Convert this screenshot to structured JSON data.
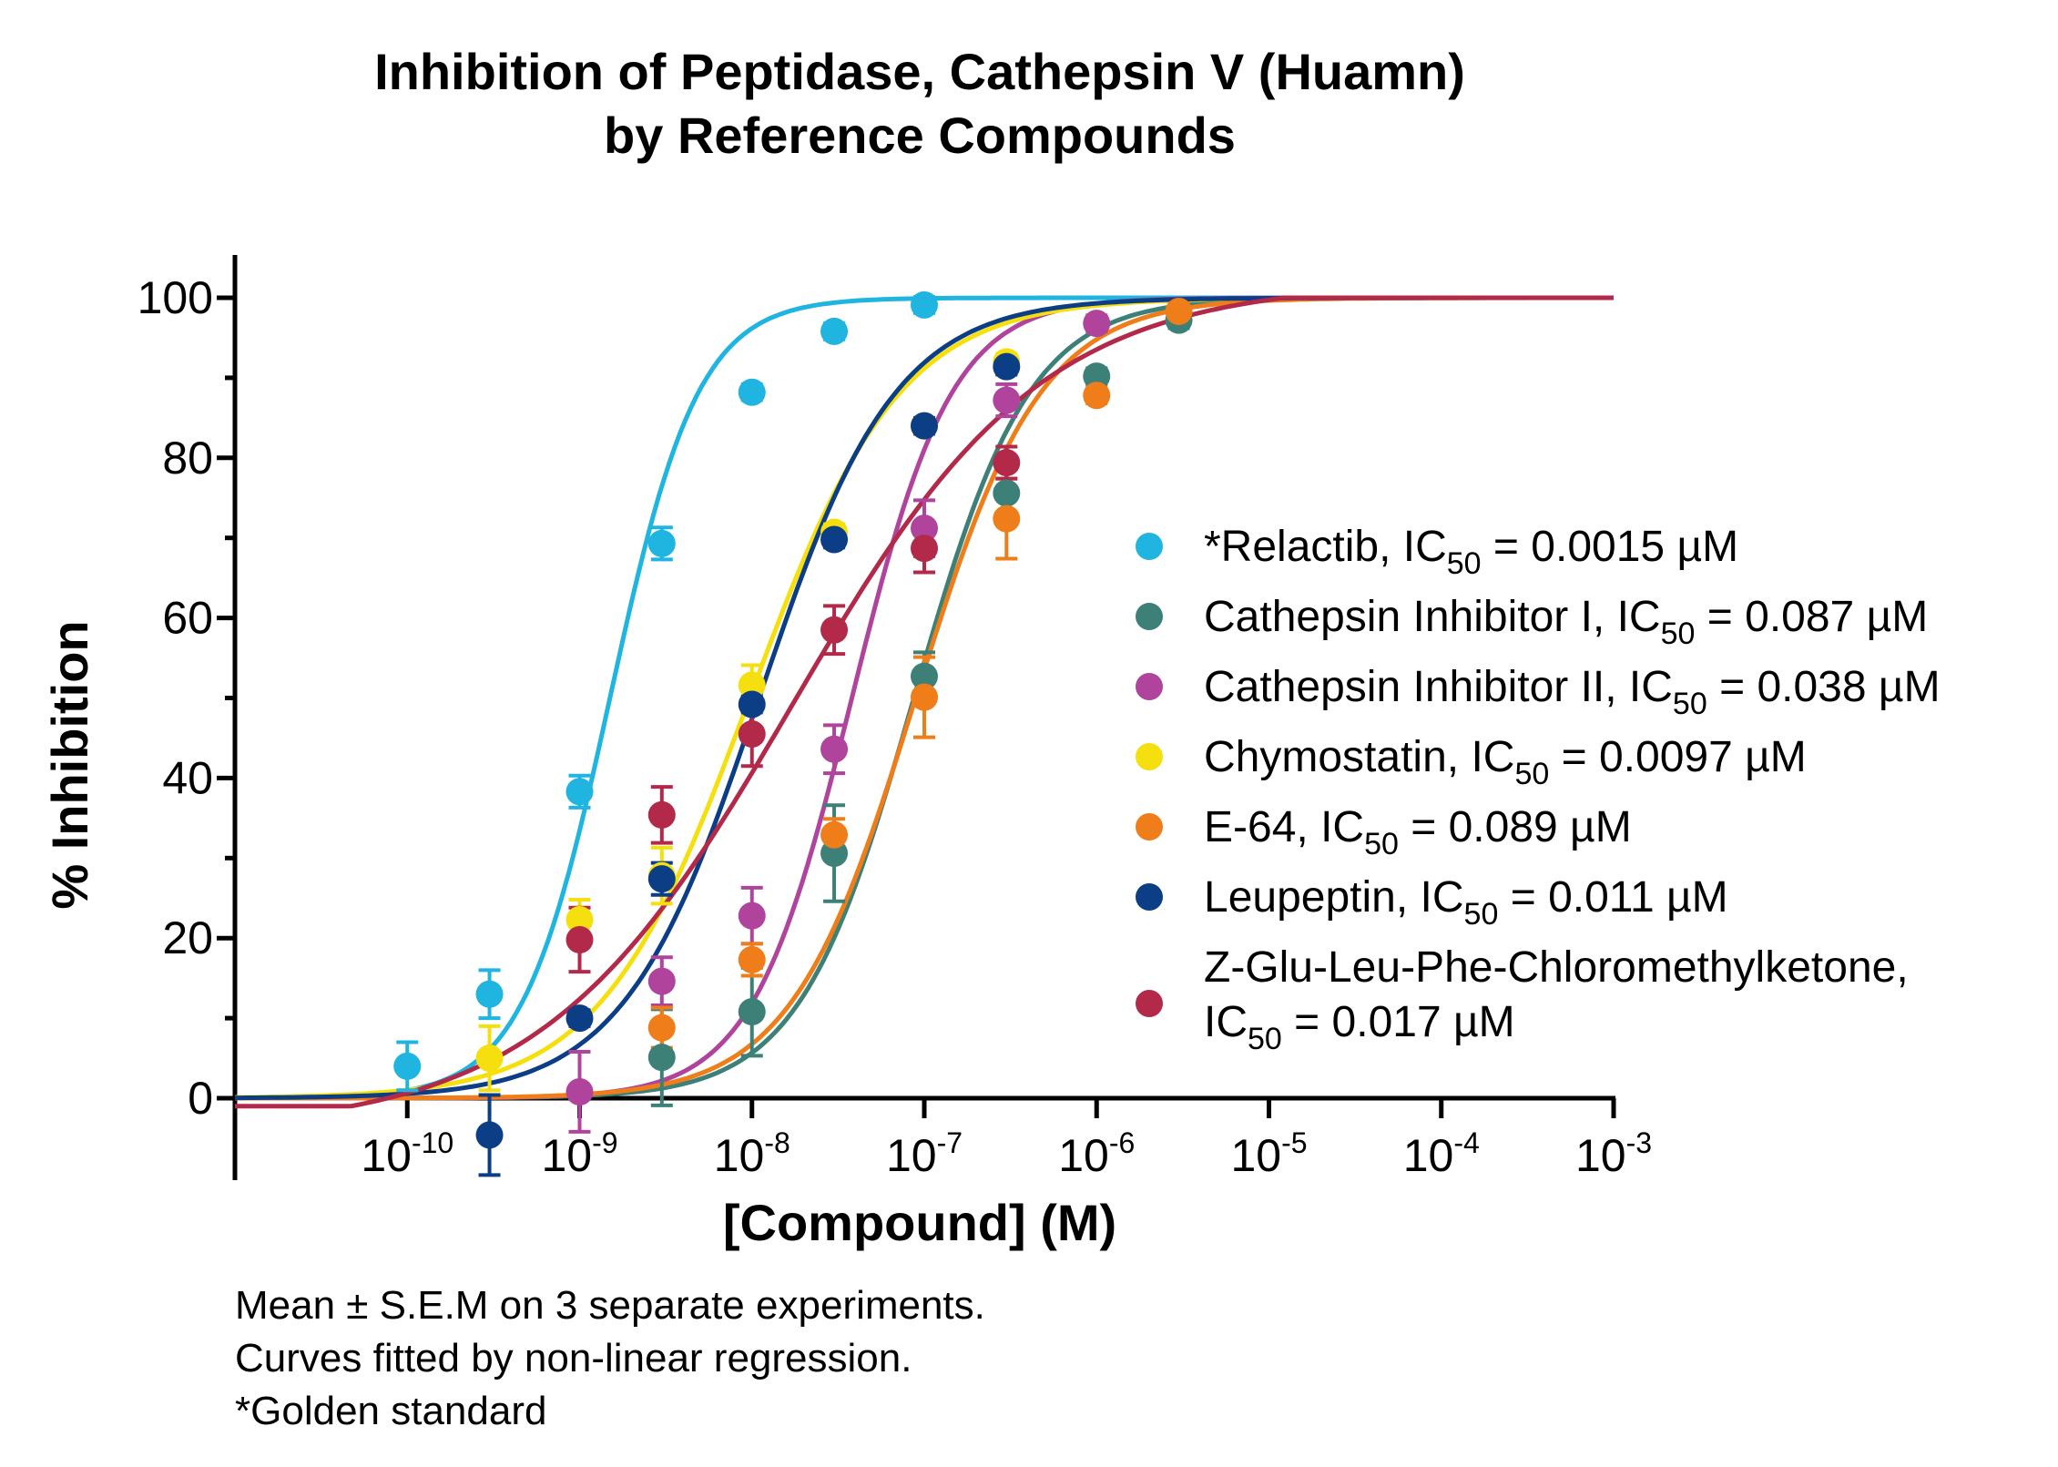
{
  "chart_data": {
    "type": "scatter",
    "title_lines": [
      "Inhibition of Peptidase, Cathepsin V (Huamn)",
      "by Reference Compounds"
    ],
    "xlabel": "[Compound] (M)",
    "ylabel": "% Inhibition",
    "x_scale": "log",
    "xlim": [
      1e-11,
      0.001
    ],
    "ylim": [
      -10,
      105
    ],
    "x_ticks": [
      {
        "base": "10",
        "exp": "-10"
      },
      {
        "base": "10",
        "exp": "-9"
      },
      {
        "base": "10",
        "exp": "-8"
      },
      {
        "base": "10",
        "exp": "-7"
      },
      {
        "base": "10",
        "exp": "-6"
      },
      {
        "base": "10",
        "exp": "-5"
      },
      {
        "base": "10",
        "exp": "-4"
      },
      {
        "base": "10",
        "exp": "-3"
      }
    ],
    "y_ticks": [
      "0",
      "20",
      "40",
      "60",
      "80",
      "100"
    ],
    "grid": false,
    "legend_position": "right",
    "series": [
      {
        "name_parts": [
          "*Relactib, IC",
          "50",
          " = 0.0015 µM"
        ],
        "color": "#1fb5e0",
        "ic50": 1.5e-09,
        "hill": 1.7,
        "bottom": 0,
        "top": 100,
        "x": [
          1e-10,
          3e-10,
          1e-09,
          3e-09,
          1e-08,
          3e-08,
          1e-07
        ],
        "y": [
          4,
          13,
          38.3,
          69.3,
          88.2,
          95.8,
          99.1
        ],
        "err": [
          3,
          3,
          2,
          2,
          1,
          1,
          1
        ]
      },
      {
        "name_parts": [
          "Cathepsin Inhibitor I, IC",
          "50",
          " = 0.087 µM"
        ],
        "color": "#3d8078",
        "ic50": 8.7e-08,
        "hill": 1.3,
        "bottom": 0,
        "top": 100,
        "x": [
          3e-09,
          1e-08,
          3e-08,
          1e-07,
          3e-07,
          1e-06,
          3e-06
        ],
        "y": [
          5.1,
          10.8,
          30.6,
          52.7,
          75.6,
          90.2,
          97.2
        ],
        "err": [
          6,
          5.5,
          6,
          3,
          3,
          1,
          1
        ]
      },
      {
        "name_parts": [
          "Cathepsin Inhibitor II, IC",
          "50",
          " = 0.038 µM"
        ],
        "color": "#b0449c",
        "ic50": 3.8e-08,
        "hill": 1.5,
        "bottom": 0,
        "top": 100,
        "x": [
          1e-09,
          3e-09,
          1e-08,
          3e-08,
          1e-07,
          3e-07,
          1e-06
        ],
        "y": [
          0.8,
          14.6,
          22.8,
          43.6,
          71.2,
          87.2,
          96.8
        ],
        "err": [
          5,
          3,
          3.5,
          3,
          3.5,
          2,
          1
        ]
      },
      {
        "name_parts": [
          "Chymostatin, IC",
          "50",
          " = 0.0097 µM"
        ],
        "color": "#f5df0e",
        "ic50": 9.7e-09,
        "hill": 1.0,
        "bottom": 0,
        "top": 100,
        "x": [
          3e-10,
          1e-09,
          3e-09,
          1e-08,
          3e-08,
          1e-07,
          3e-07
        ],
        "y": [
          5,
          22.3,
          27.8,
          51.6,
          70.7,
          84,
          92
        ],
        "err": [
          4,
          2.5,
          3.5,
          2.5,
          1,
          1,
          1
        ]
      },
      {
        "name_parts": [
          "E-64, IC",
          "50",
          " = 0.089 µM"
        ],
        "color": "#ee7d1a",
        "ic50": 8.9e-08,
        "hill": 1.2,
        "bottom": 0,
        "top": 100,
        "x": [
          3e-09,
          1e-08,
          3e-08,
          1e-07,
          3e-07,
          1e-06,
          3e-06
        ],
        "y": [
          8.8,
          17.3,
          32.9,
          50.1,
          72.4,
          87.8,
          98.3
        ],
        "err": [
          2.5,
          2,
          2,
          5,
          5,
          1,
          1
        ]
      },
      {
        "name_parts": [
          "Leupeptin, IC",
          "50",
          " = 0.011 µM"
        ],
        "color": "#0c3e86",
        "ic50": 1.1e-08,
        "hill": 1.1,
        "bottom": 0,
        "top": 100,
        "x": [
          3e-10,
          1e-09,
          3e-09,
          1e-08,
          3e-08,
          1e-07,
          3e-07
        ],
        "y": [
          -4.6,
          10,
          27.4,
          49.2,
          69.8,
          84,
          91.4
        ],
        "err": [
          5,
          1,
          2,
          1,
          1,
          1,
          1
        ]
      },
      {
        "name_parts": [
          "Z-Glu-Leu-Phe-Chloromethylketone,",
          "",
          ""
        ],
        "name_line2_parts": [
          "IC",
          "50",
          " = 0.017 µM"
        ],
        "color": "#b2294a",
        "ic50": 1.7e-08,
        "hill": 0.6,
        "bottom": -4,
        "top": 102,
        "x": [
          1e-09,
          3e-09,
          1e-08,
          3e-08,
          1e-07,
          3e-07
        ],
        "y": [
          19.8,
          35.4,
          45.5,
          58.5,
          68.7,
          79.4
        ],
        "err": [
          4,
          3.5,
          4,
          3,
          3,
          2
        ]
      }
    ]
  },
  "footnotes": [
    "Mean ± S.E.M on 3 separate experiments.",
    "Curves fitted by non-linear regression.",
    "*Golden standard"
  ]
}
